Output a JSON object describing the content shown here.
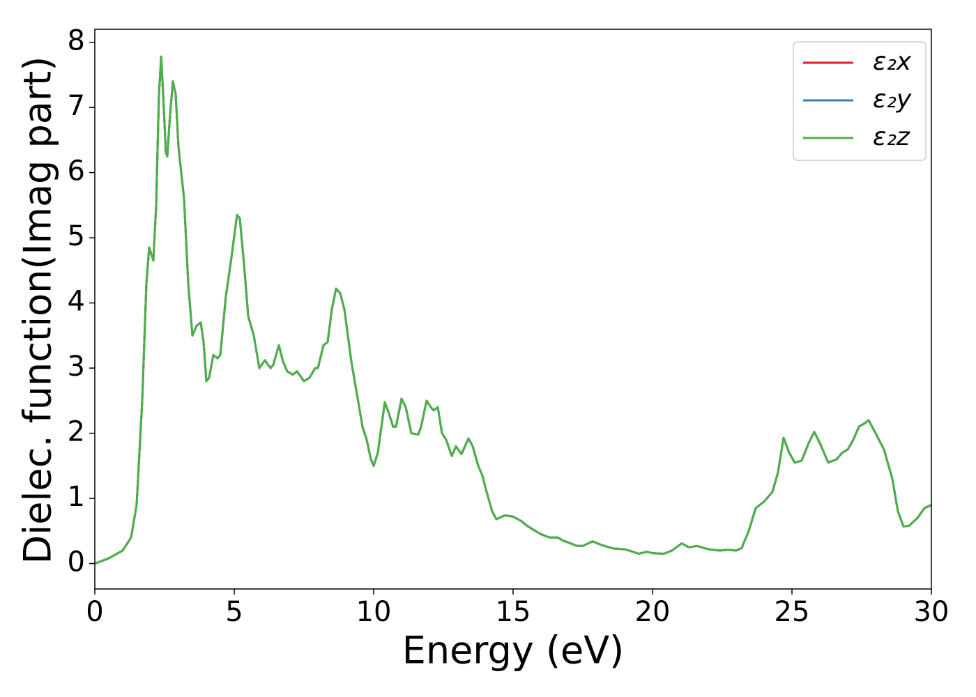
{
  "chart_data": {
    "type": "line",
    "xlabel": "Energy (eV)",
    "ylabel": "Dielec. function(Imag part)",
    "xlim": [
      0,
      30
    ],
    "ylim": [
      -0.39,
      8.2
    ],
    "xticks": [
      0,
      5,
      10,
      15,
      20,
      25,
      30
    ],
    "yticks": [
      0,
      1,
      2,
      3,
      4,
      5,
      6,
      7,
      8
    ],
    "legend": "upper right",
    "x": [
      0,
      0.5,
      1.0,
      1.3,
      1.5,
      1.7,
      1.85,
      1.95,
      2.1,
      2.2,
      2.3,
      2.38,
      2.45,
      2.55,
      2.6,
      2.7,
      2.8,
      2.9,
      3.0,
      3.2,
      3.35,
      3.5,
      3.65,
      3.8,
      3.9,
      4.0,
      4.1,
      4.25,
      4.4,
      4.5,
      4.7,
      4.9,
      5.1,
      5.2,
      5.35,
      5.5,
      5.7,
      5.9,
      6.1,
      6.3,
      6.4,
      6.6,
      6.75,
      6.9,
      7.1,
      7.25,
      7.5,
      7.7,
      7.9,
      8.0,
      8.2,
      8.35,
      8.5,
      8.65,
      8.8,
      8.95,
      9.2,
      9.4,
      9.6,
      9.75,
      9.9,
      10.0,
      10.15,
      10.4,
      10.55,
      10.7,
      10.8,
      11.0,
      11.15,
      11.35,
      11.6,
      11.7,
      11.9,
      12.05,
      12.15,
      12.3,
      12.45,
      12.6,
      12.8,
      12.95,
      13.15,
      13.4,
      13.55,
      13.75,
      13.9,
      14.05,
      14.25,
      14.4,
      14.7,
      15.0,
      15.3,
      15.5,
      15.8,
      16.0,
      16.3,
      16.6,
      16.8,
      17.0,
      17.3,
      17.5,
      17.85,
      18.2,
      18.6,
      19.0,
      19.3,
      19.5,
      19.8,
      20.0,
      20.4,
      20.7,
      21.05,
      21.3,
      21.6,
      22.0,
      22.4,
      22.7,
      23.0,
      23.2,
      23.45,
      23.7,
      24.0,
      24.3,
      24.5,
      24.7,
      24.9,
      25.1,
      25.35,
      25.6,
      25.8,
      26.0,
      26.3,
      26.6,
      26.8,
      27.0,
      27.2,
      27.4,
      27.6,
      27.75,
      28.0,
      28.3,
      28.6,
      28.8,
      29.0,
      29.2,
      29.5,
      29.75,
      30.0
    ],
    "series": [
      {
        "name": "ε₂x",
        "color": "#e41a1c",
        "values": [
          0,
          0.08,
          0.2,
          0.4,
          0.9,
          2.5,
          4.3,
          4.85,
          4.65,
          5.5,
          7.2,
          7.78,
          7.2,
          6.3,
          6.25,
          6.9,
          7.4,
          7.2,
          6.4,
          5.6,
          4.3,
          3.5,
          3.65,
          3.7,
          3.4,
          2.8,
          2.85,
          3.2,
          3.15,
          3.2,
          4.1,
          4.7,
          5.35,
          5.3,
          4.6,
          3.8,
          3.5,
          3.0,
          3.12,
          3.0,
          3.05,
          3.35,
          3.1,
          2.95,
          2.9,
          2.95,
          2.8,
          2.85,
          3.0,
          3.0,
          3.35,
          3.4,
          3.9,
          4.22,
          4.15,
          3.9,
          3.1,
          2.6,
          2.1,
          1.9,
          1.6,
          1.5,
          1.7,
          2.48,
          2.3,
          2.1,
          2.1,
          2.53,
          2.4,
          2.0,
          1.98,
          2.1,
          2.5,
          2.4,
          2.35,
          2.4,
          2.0,
          1.9,
          1.65,
          1.8,
          1.68,
          1.92,
          1.8,
          1.5,
          1.35,
          1.1,
          0.8,
          0.68,
          0.74,
          0.72,
          0.65,
          0.58,
          0.5,
          0.45,
          0.4,
          0.4,
          0.35,
          0.32,
          0.27,
          0.27,
          0.34,
          0.28,
          0.23,
          0.22,
          0.18,
          0.15,
          0.18,
          0.16,
          0.15,
          0.2,
          0.31,
          0.25,
          0.27,
          0.22,
          0.2,
          0.21,
          0.2,
          0.24,
          0.5,
          0.85,
          0.95,
          1.1,
          1.4,
          1.93,
          1.7,
          1.55,
          1.58,
          1.85,
          2.02,
          1.85,
          1.55,
          1.6,
          1.7,
          1.75,
          1.9,
          2.1,
          2.15,
          2.2,
          2.0,
          1.75,
          1.3,
          0.8,
          0.57,
          0.58,
          0.7,
          0.85,
          0.9
        ]
      },
      {
        "name": "ε₂y",
        "color": "#377eb8",
        "values": [
          0,
          0.08,
          0.2,
          0.4,
          0.9,
          2.5,
          4.3,
          4.85,
          4.65,
          5.5,
          7.2,
          7.78,
          7.2,
          6.3,
          6.25,
          6.9,
          7.4,
          7.2,
          6.4,
          5.6,
          4.3,
          3.5,
          3.65,
          3.7,
          3.4,
          2.8,
          2.85,
          3.2,
          3.15,
          3.2,
          4.1,
          4.7,
          5.35,
          5.3,
          4.6,
          3.8,
          3.5,
          3.0,
          3.12,
          3.0,
          3.05,
          3.35,
          3.1,
          2.95,
          2.9,
          2.95,
          2.8,
          2.85,
          3.0,
          3.0,
          3.35,
          3.4,
          3.9,
          4.22,
          4.15,
          3.9,
          3.1,
          2.6,
          2.1,
          1.9,
          1.6,
          1.5,
          1.7,
          2.48,
          2.3,
          2.1,
          2.1,
          2.53,
          2.4,
          2.0,
          1.98,
          2.1,
          2.5,
          2.4,
          2.35,
          2.4,
          2.0,
          1.9,
          1.65,
          1.8,
          1.68,
          1.92,
          1.8,
          1.5,
          1.35,
          1.1,
          0.8,
          0.68,
          0.74,
          0.72,
          0.65,
          0.58,
          0.5,
          0.45,
          0.4,
          0.4,
          0.35,
          0.32,
          0.27,
          0.27,
          0.34,
          0.28,
          0.23,
          0.22,
          0.18,
          0.15,
          0.18,
          0.16,
          0.15,
          0.2,
          0.31,
          0.25,
          0.27,
          0.22,
          0.2,
          0.21,
          0.2,
          0.24,
          0.5,
          0.85,
          0.95,
          1.1,
          1.4,
          1.93,
          1.7,
          1.55,
          1.58,
          1.85,
          2.02,
          1.85,
          1.55,
          1.6,
          1.7,
          1.75,
          1.9,
          2.1,
          2.15,
          2.2,
          2.0,
          1.75,
          1.3,
          0.8,
          0.57,
          0.58,
          0.7,
          0.85,
          0.9
        ]
      },
      {
        "name": "ε₂z",
        "color": "#4daf4a",
        "values": [
          0,
          0.08,
          0.2,
          0.4,
          0.9,
          2.5,
          4.3,
          4.85,
          4.65,
          5.5,
          7.2,
          7.78,
          7.2,
          6.3,
          6.25,
          6.9,
          7.4,
          7.2,
          6.4,
          5.6,
          4.3,
          3.5,
          3.65,
          3.7,
          3.4,
          2.8,
          2.85,
          3.2,
          3.15,
          3.2,
          4.1,
          4.7,
          5.35,
          5.3,
          4.6,
          3.8,
          3.5,
          3.0,
          3.12,
          3.0,
          3.05,
          3.35,
          3.1,
          2.95,
          2.9,
          2.95,
          2.8,
          2.85,
          3.0,
          3.0,
          3.35,
          3.4,
          3.9,
          4.22,
          4.15,
          3.9,
          3.1,
          2.6,
          2.1,
          1.9,
          1.6,
          1.5,
          1.7,
          2.48,
          2.3,
          2.1,
          2.1,
          2.53,
          2.4,
          2.0,
          1.98,
          2.1,
          2.5,
          2.4,
          2.35,
          2.4,
          2.0,
          1.9,
          1.65,
          1.8,
          1.68,
          1.92,
          1.8,
          1.5,
          1.35,
          1.1,
          0.8,
          0.68,
          0.74,
          0.72,
          0.65,
          0.58,
          0.5,
          0.45,
          0.4,
          0.4,
          0.35,
          0.32,
          0.27,
          0.27,
          0.34,
          0.28,
          0.23,
          0.22,
          0.18,
          0.15,
          0.18,
          0.16,
          0.15,
          0.2,
          0.31,
          0.25,
          0.27,
          0.22,
          0.2,
          0.21,
          0.2,
          0.24,
          0.5,
          0.85,
          0.95,
          1.1,
          1.4,
          1.93,
          1.7,
          1.55,
          1.58,
          1.85,
          2.02,
          1.85,
          1.55,
          1.6,
          1.7,
          1.75,
          1.9,
          2.1,
          2.15,
          2.2,
          2.0,
          1.75,
          1.3,
          0.8,
          0.57,
          0.58,
          0.7,
          0.85,
          0.9
        ]
      }
    ]
  }
}
